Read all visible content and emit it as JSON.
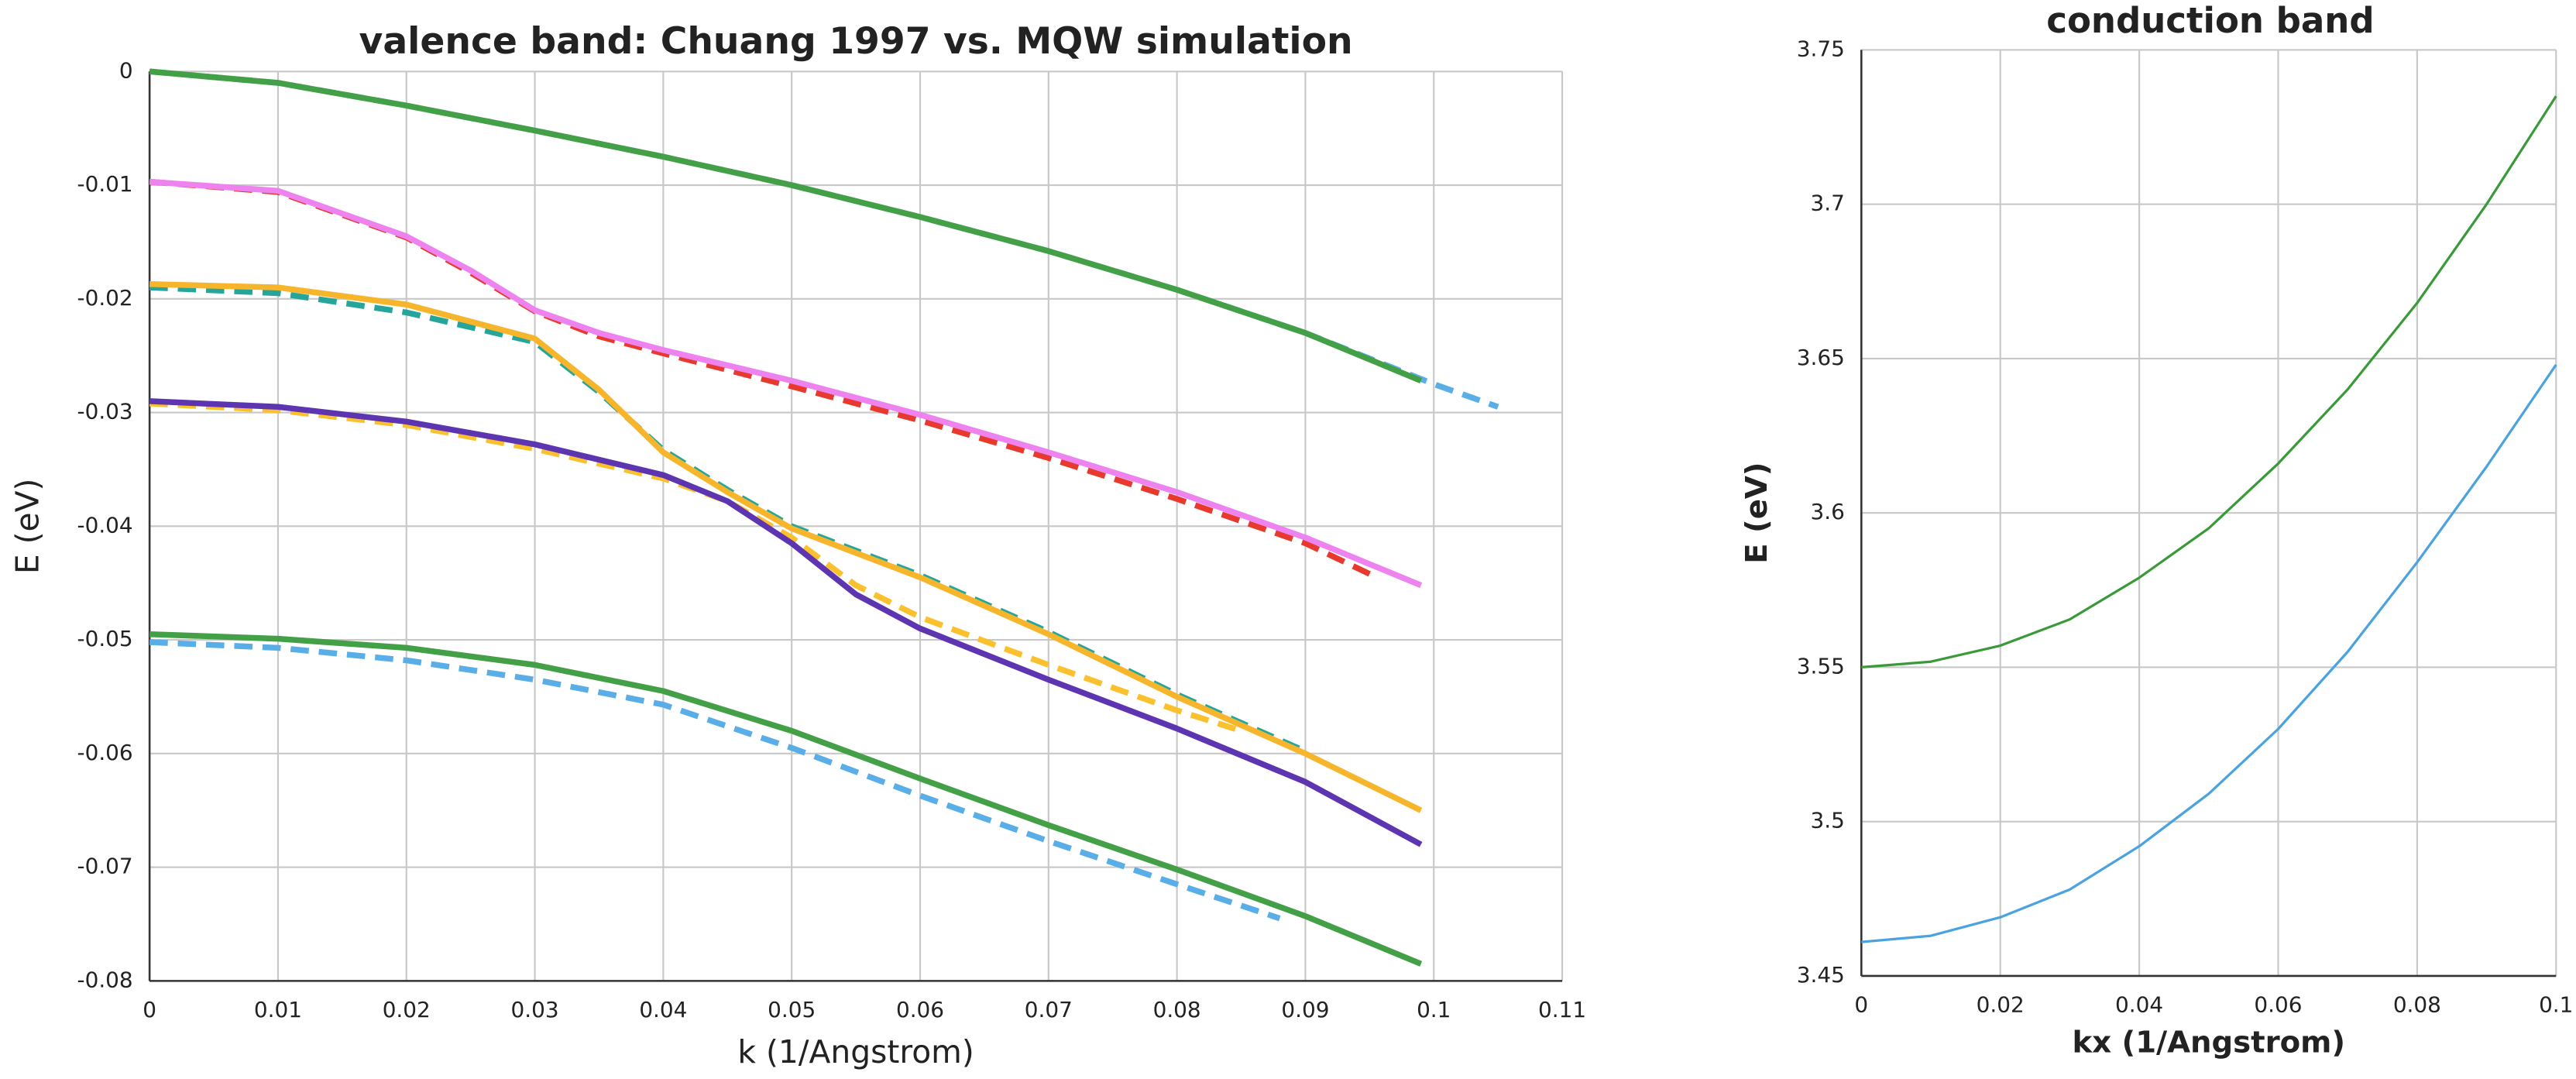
{
  "chart_data": [
    {
      "type": "line",
      "title": "valence band: Chuang 1997 vs. MQW simulation",
      "xlabel": "k (1/Angstrom)",
      "ylabel": "E (eV)",
      "xlim": [
        0,
        0.11
      ],
      "ylim": [
        -0.08,
        0
      ],
      "xticks": [
        0,
        0.01,
        0.02,
        0.03,
        0.04,
        0.05,
        0.06,
        0.07,
        0.08,
        0.09,
        0.1,
        0.11
      ],
      "yticks": [
        0,
        -0.01,
        -0.02,
        -0.03,
        -0.04,
        -0.05,
        -0.06,
        -0.07,
        -0.08
      ],
      "grid": true,
      "series": [
        {
          "color": "#5aaee8",
          "dashed": true,
          "x": [
            0,
            0.01,
            0.02,
            0.03,
            0.04,
            0.05,
            0.06,
            0.07,
            0.08,
            0.09,
            0.1,
            0.105
          ],
          "values": [
            0,
            -0.001,
            -0.003,
            -0.0052,
            -0.0075,
            -0.01,
            -0.0128,
            -0.0158,
            -0.0192,
            -0.023,
            -0.0275,
            -0.0295
          ]
        },
        {
          "color": "#e8392f",
          "dashed": true,
          "x": [
            0,
            0.01,
            0.02,
            0.025,
            0.03,
            0.035,
            0.04,
            0.05,
            0.06,
            0.07,
            0.08,
            0.09,
            0.095
          ],
          "values": [
            -0.0097,
            -0.0106,
            -0.0146,
            -0.0177,
            -0.0211,
            -0.0233,
            -0.0248,
            -0.0277,
            -0.0307,
            -0.034,
            -0.0376,
            -0.0415,
            -0.0442
          ]
        },
        {
          "color": "#26a69a",
          "dashed": true,
          "x": [
            0,
            0.01,
            0.02,
            0.03,
            0.035,
            0.04,
            0.045,
            0.05,
            0.06,
            0.07,
            0.08,
            0.09
          ],
          "values": [
            -0.019,
            -0.0195,
            -0.0212,
            -0.0238,
            -0.0282,
            -0.0333,
            -0.0368,
            -0.04,
            -0.0443,
            -0.0493,
            -0.0548,
            -0.0598
          ]
        },
        {
          "color": "#fbc02d",
          "dashed": true,
          "x": [
            0,
            0.01,
            0.02,
            0.03,
            0.04,
            0.045,
            0.05,
            0.055,
            0.06,
            0.07,
            0.08,
            0.085
          ],
          "values": [
            -0.0292,
            -0.0298,
            -0.0311,
            -0.0332,
            -0.0358,
            -0.0378,
            -0.041,
            -0.0452,
            -0.048,
            -0.0522,
            -0.0562,
            -0.058
          ]
        },
        {
          "color": "#5aaee8",
          "dashed": true,
          "x": [
            0,
            0.01,
            0.02,
            0.03,
            0.04,
            0.05,
            0.06,
            0.07,
            0.08,
            0.088
          ],
          "values": [
            -0.0502,
            -0.0507,
            -0.0518,
            -0.0535,
            -0.0557,
            -0.0595,
            -0.0637,
            -0.0677,
            -0.0715,
            -0.0745
          ]
        },
        {
          "color": "#43a047",
          "dashed": false,
          "x": [
            0,
            0.01,
            0.02,
            0.03,
            0.04,
            0.05,
            0.06,
            0.07,
            0.08,
            0.09,
            0.099
          ],
          "values": [
            0,
            -0.001,
            -0.003,
            -0.0052,
            -0.0075,
            -0.01,
            -0.0128,
            -0.0158,
            -0.0192,
            -0.023,
            -0.0272
          ]
        },
        {
          "color": "#ee82ee",
          "dashed": false,
          "x": [
            0,
            0.01,
            0.02,
            0.025,
            0.03,
            0.035,
            0.04,
            0.05,
            0.06,
            0.07,
            0.08,
            0.09,
            0.099
          ],
          "values": [
            -0.0097,
            -0.0105,
            -0.0145,
            -0.0175,
            -0.021,
            -0.023,
            -0.0245,
            -0.0272,
            -0.0302,
            -0.0335,
            -0.037,
            -0.041,
            -0.0452
          ]
        },
        {
          "color": "#f7b52c",
          "dashed": false,
          "x": [
            0,
            0.01,
            0.02,
            0.03,
            0.035,
            0.04,
            0.045,
            0.05,
            0.06,
            0.07,
            0.08,
            0.09,
            0.099
          ],
          "values": [
            -0.0187,
            -0.019,
            -0.0205,
            -0.0235,
            -0.028,
            -0.0335,
            -0.037,
            -0.0402,
            -0.0445,
            -0.0495,
            -0.055,
            -0.06,
            -0.065
          ]
        },
        {
          "color": "#5e35b1",
          "dashed": false,
          "x": [
            0,
            0.01,
            0.02,
            0.03,
            0.04,
            0.045,
            0.05,
            0.055,
            0.06,
            0.07,
            0.08,
            0.09,
            0.099
          ],
          "values": [
            -0.029,
            -0.0295,
            -0.0308,
            -0.0328,
            -0.0355,
            -0.0378,
            -0.0415,
            -0.046,
            -0.049,
            -0.0535,
            -0.0578,
            -0.0625,
            -0.068
          ]
        },
        {
          "color": "#43a047",
          "dashed": false,
          "x": [
            0,
            0.01,
            0.02,
            0.03,
            0.04,
            0.05,
            0.06,
            0.07,
            0.08,
            0.09,
            0.099
          ],
          "values": [
            -0.0495,
            -0.0499,
            -0.0507,
            -0.0522,
            -0.0545,
            -0.058,
            -0.0622,
            -0.0663,
            -0.0702,
            -0.0743,
            -0.0785
          ]
        }
      ]
    },
    {
      "type": "line",
      "title": "conduction band",
      "xlabel": "kx (1/Angstrom)",
      "ylabel": "E (eV)",
      "xlim": [
        0,
        0.1
      ],
      "ylim": [
        3.45,
        3.75
      ],
      "xticks": [
        0,
        0.02,
        0.04,
        0.06,
        0.08,
        0.1
      ],
      "yticks": [
        3.45,
        3.5,
        3.55,
        3.6,
        3.65,
        3.7,
        3.75
      ],
      "grid": true,
      "series": [
        {
          "color": "#3a9a3a",
          "dashed": false,
          "x": [
            0,
            0.01,
            0.02,
            0.03,
            0.04,
            0.05,
            0.06,
            0.07,
            0.08,
            0.09,
            0.1
          ],
          "values": [
            3.55,
            3.5518,
            3.557,
            3.5655,
            3.579,
            3.595,
            3.616,
            3.64,
            3.668,
            3.7,
            3.735
          ]
        },
        {
          "color": "#4aa3df",
          "dashed": false,
          "x": [
            0,
            0.01,
            0.02,
            0.03,
            0.04,
            0.05,
            0.06,
            0.07,
            0.08,
            0.09,
            0.1
          ],
          "values": [
            3.461,
            3.463,
            3.469,
            3.478,
            3.492,
            3.509,
            3.53,
            3.555,
            3.584,
            3.615,
            3.648
          ]
        }
      ]
    }
  ]
}
